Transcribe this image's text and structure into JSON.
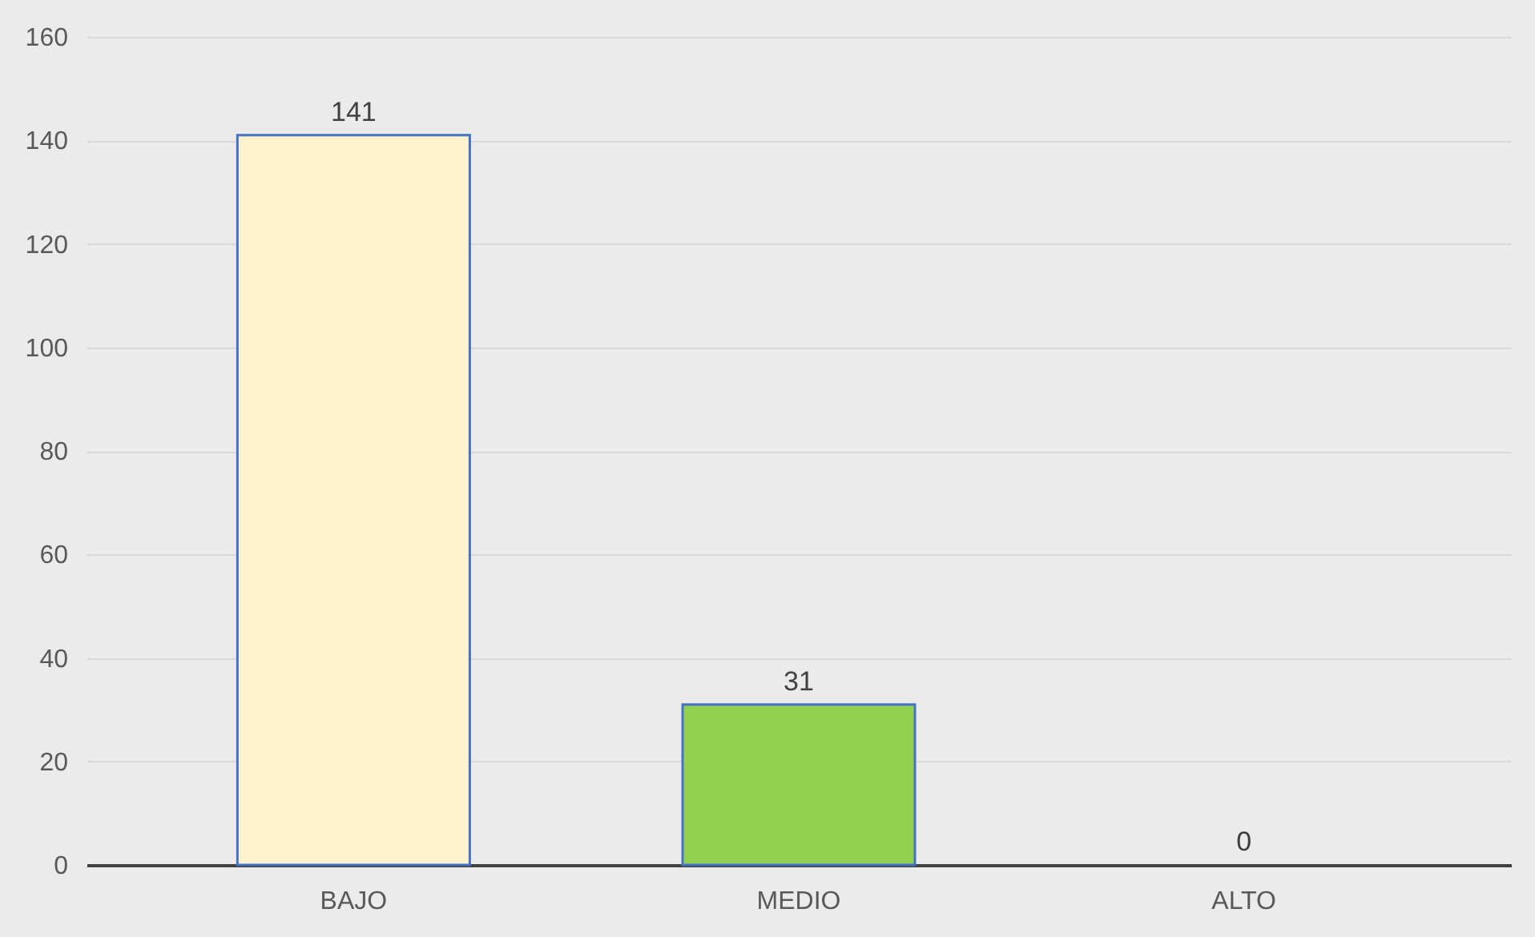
{
  "chart_data": {
    "type": "bar",
    "categories": [
      "BAJO",
      "MEDIO",
      "ALTO"
    ],
    "values": [
      141,
      31,
      0
    ],
    "colors": [
      "#fff2cc",
      "#92d050",
      "#0070c0"
    ],
    "ylim": [
      0,
      160
    ],
    "yticks": [
      0,
      20,
      40,
      60,
      80,
      100,
      120,
      140,
      160
    ],
    "grid": "y",
    "data_labels": true
  }
}
